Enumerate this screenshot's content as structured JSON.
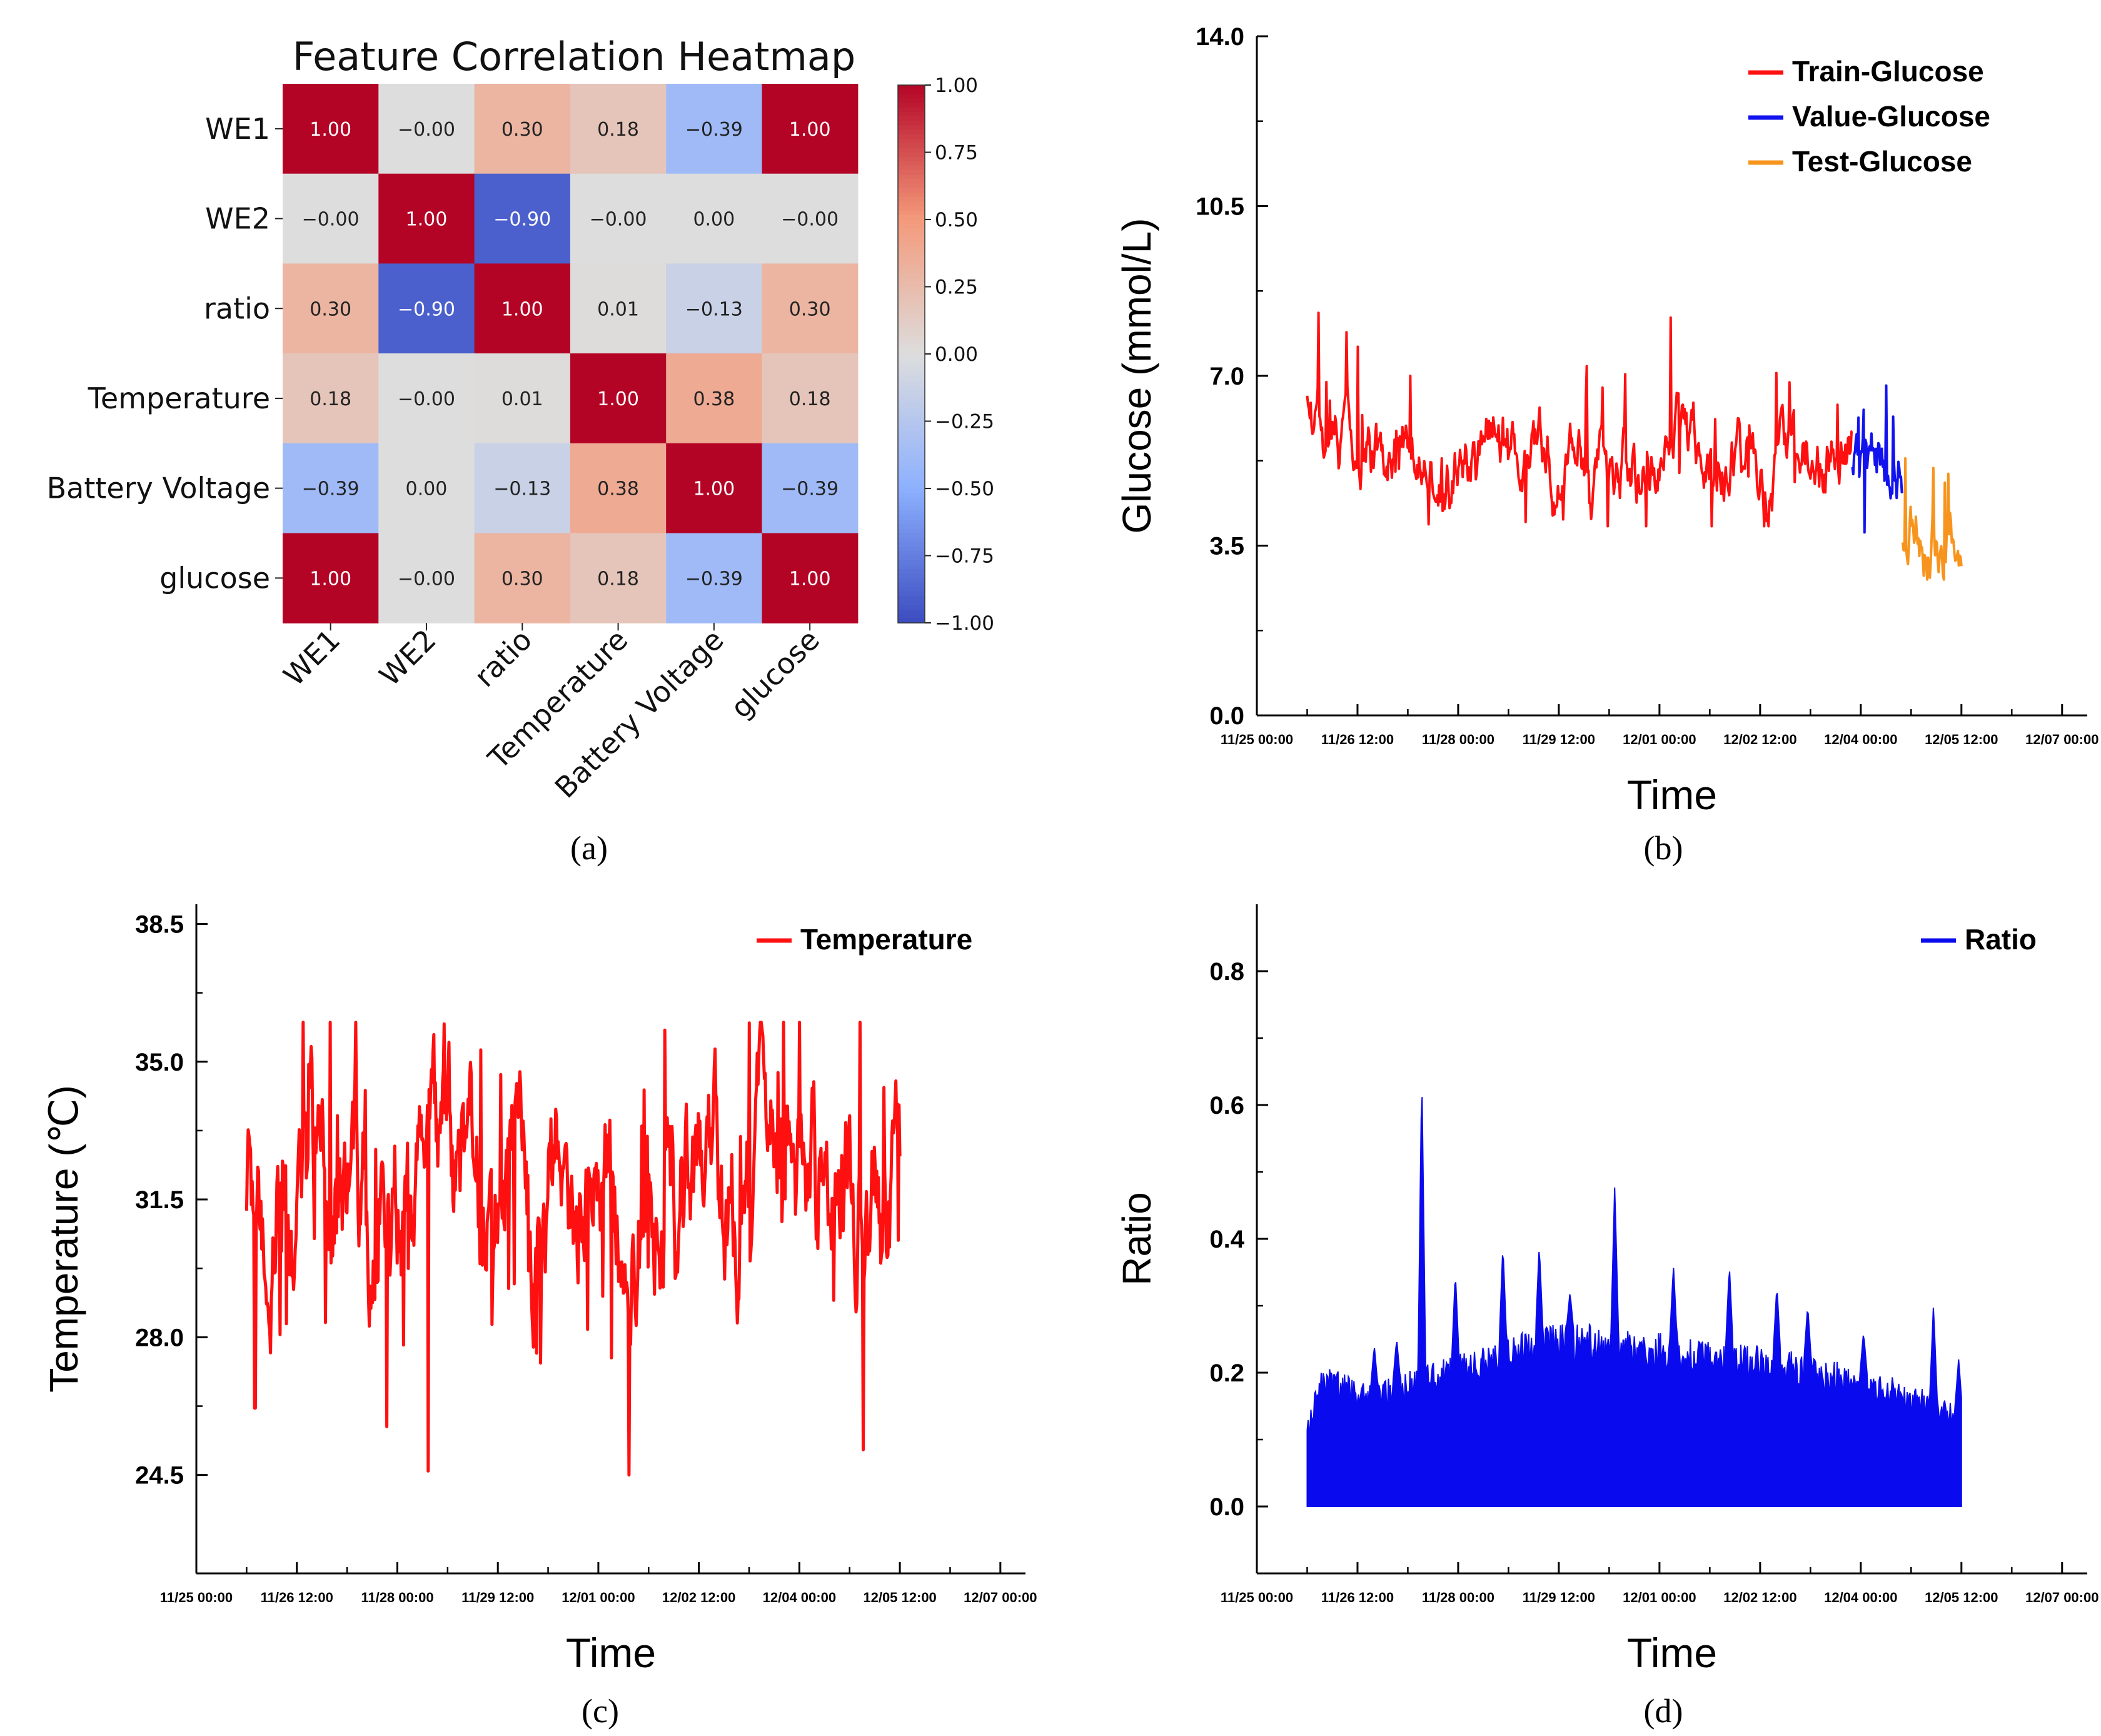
{
  "chart_data": [
    {
      "panel": "(a)",
      "type": "heatmap",
      "title": "Feature Correlation Heatmap",
      "rows": [
        "WE1",
        "WE2",
        "ratio",
        "Temperature",
        "Battery Voltage",
        "glucose"
      ],
      "cols": [
        "WE1",
        "WE2",
        "ratio",
        "Temperature",
        "Battery Voltage",
        "glucose"
      ],
      "values": [
        [
          1.0,
          -0.0,
          0.3,
          0.18,
          -0.39,
          1.0
        ],
        [
          -0.0,
          1.0,
          -0.9,
          -0.0,
          0.0,
          -0.0
        ],
        [
          0.3,
          -0.9,
          1.0,
          0.01,
          -0.13,
          0.3
        ],
        [
          0.18,
          -0.0,
          0.01,
          1.0,
          0.38,
          0.18
        ],
        [
          -0.39,
          0.0,
          -0.13,
          0.38,
          1.0,
          -0.39
        ],
        [
          1.0,
          -0.0,
          0.3,
          0.18,
          -0.39,
          1.0
        ]
      ],
      "labels": [
        [
          "1.00",
          "−0.00",
          "0.30",
          "0.18",
          "−0.39",
          "1.00"
        ],
        [
          "−0.00",
          "1.00",
          "−0.90",
          "−0.00",
          "0.00",
          "−0.00"
        ],
        [
          "0.30",
          "−0.90",
          "1.00",
          "0.01",
          "−0.13",
          "0.30"
        ],
        [
          "0.18",
          "−0.00",
          "0.01",
          "1.00",
          "0.38",
          "0.18"
        ],
        [
          "−0.39",
          "0.00",
          "−0.13",
          "0.38",
          "1.00",
          "−0.39"
        ],
        [
          "1.00",
          "−0.00",
          "0.30",
          "0.18",
          "−0.39",
          "1.00"
        ]
      ],
      "colorbar_ticks": [
        "1.00",
        "0.75",
        "0.50",
        "0.25",
        "0.00",
        "−0.25",
        "−0.50",
        "−0.75",
        "−1.00"
      ],
      "colormap": "coolwarm",
      "vmin": -1,
      "vmax": 1
    },
    {
      "panel": "(b)",
      "type": "line",
      "xlabel": "Time",
      "ylabel": "Glucose (mmol/L)",
      "ylim": [
        0,
        14
      ],
      "yticks": [
        "0.0",
        "3.5",
        "7.0",
        "10.5",
        "14.0"
      ],
      "xticks": [
        "11/25 00:00",
        "11/26 12:00",
        "11/28 00:00",
        "11/29 12:00",
        "12/01 00:00",
        "12/02 12:00",
        "12/04 00:00",
        "12/05 12:00",
        "12/07 00:00"
      ],
      "x_range_hours": [
        0,
        297
      ],
      "series": [
        {
          "name": "Train-Glucose",
          "color": "#ff1010",
          "x_range": [
            18,
            213
          ],
          "start": 6.4,
          "mean": 5.3,
          "lo": 3.9,
          "hi": 8.3,
          "spikes": [
            [
              22,
              8.3
            ],
            [
              32,
              7.9
            ],
            [
              36,
              7.6
            ],
            [
              55,
              7.0
            ],
            [
              118,
              7.2
            ],
            [
              148,
              8.2
            ]
          ]
        },
        {
          "name": "Value-Glucose",
          "color": "#1212ee",
          "x_range": [
            213,
            231
          ],
          "mean": 4.9,
          "lo": 3.7,
          "hi": 6.8,
          "spikes": [
            [
              217,
              6.3
            ],
            [
              225,
              6.8
            ]
          ]
        },
        {
          "name": "Test-Glucose",
          "color": "#f7941d",
          "x_range": [
            231,
            252
          ],
          "mean": 4.0,
          "lo": 2.8,
          "hi": 5.4,
          "spikes": [
            [
              232,
              5.3
            ],
            [
              242,
              5.1
            ],
            [
              246,
              4.8
            ]
          ]
        }
      ]
    },
    {
      "panel": "(c)",
      "type": "line",
      "xlabel": "Time",
      "ylabel": "Temperature (℃)",
      "ylim": [
        22,
        39
      ],
      "yticks": [
        "24.5",
        "28.0",
        "31.5",
        "35.0",
        "38.5"
      ],
      "xticks": [
        "11/25 00:00",
        "11/26 12:00",
        "11/28 00:00",
        "11/29 12:00",
        "12/01 00:00",
        "12/02 12:00",
        "12/04 00:00",
        "12/05 12:00",
        "12/07 00:00"
      ],
      "x_range_hours": [
        0,
        297
      ],
      "series": [
        {
          "name": "Temperature",
          "color": "#ff1010",
          "x_range": [
            18,
            252
          ],
          "mean": 31.3,
          "lo": 24.5,
          "hi": 36.0,
          "spikes": [
            [
              21,
              26.2
            ],
            [
              48,
              36.0
            ],
            [
              83,
              24.6
            ],
            [
              39,
              33.7
            ],
            [
              102,
              35.3
            ]
          ]
        }
      ]
    },
    {
      "panel": "(d)",
      "type": "area",
      "xlabel": "Time",
      "ylabel": "Ratio",
      "ylim": [
        -0.1,
        0.9
      ],
      "yticks": [
        "0.0",
        "0.2",
        "0.4",
        "0.6",
        "0.8"
      ],
      "xticks": [
        "11/25 00:00",
        "11/26 12:00",
        "11/28 00:00",
        "11/29 12:00",
        "12/01 00:00",
        "12/02 12:00",
        "12/04 00:00",
        "12/05 12:00",
        "12/07 00:00"
      ],
      "x_range_hours": [
        0,
        297
      ],
      "series": [
        {
          "name": "Ratio",
          "color": "#0a0aee",
          "x_range": [
            18,
            252
          ],
          "envelope": [
            [
              18,
              0.12
            ],
            [
              21,
              0.17
            ],
            [
              24,
              0.2
            ],
            [
              40,
              0.17
            ],
            [
              55,
              0.19
            ],
            [
              70,
              0.21
            ],
            [
              90,
              0.24
            ],
            [
              110,
              0.26
            ],
            [
              130,
              0.25
            ],
            [
              150,
              0.24
            ],
            [
              170,
              0.23
            ],
            [
              190,
              0.22
            ],
            [
              210,
              0.2
            ],
            [
              230,
              0.18
            ],
            [
              245,
              0.15
            ],
            [
              252,
              0.14
            ]
          ],
          "spikes": [
            [
              42,
              0.24
            ],
            [
              50,
              0.25
            ],
            [
              59,
              0.65
            ],
            [
              71,
              0.35
            ],
            [
              88,
              0.39
            ],
            [
              101,
              0.39
            ],
            [
              112,
              0.32
            ],
            [
              128,
              0.48
            ],
            [
              149,
              0.36
            ],
            [
              169,
              0.36
            ],
            [
              186,
              0.33
            ],
            [
              197,
              0.3
            ],
            [
              217,
              0.26
            ],
            [
              242,
              0.3
            ],
            [
              251,
              0.22
            ]
          ]
        }
      ]
    }
  ],
  "captions": [
    "(a)",
    "(b)",
    "(c)",
    "(d)"
  ]
}
